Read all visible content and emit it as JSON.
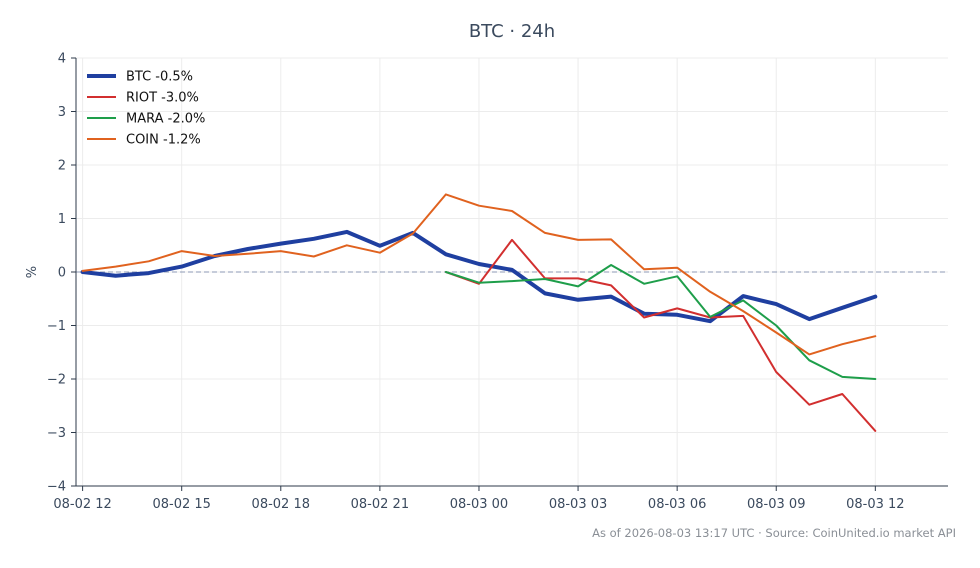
{
  "chart_data": {
    "type": "line",
    "title": "BTC · 24h",
    "ylabel": "%",
    "xlabel": "",
    "ylim": [
      -4,
      4
    ],
    "yticks": [
      -4,
      -3,
      -2,
      -1,
      0,
      1,
      2,
      3,
      4
    ],
    "ytick_labels": [
      "−4",
      "−3",
      "−2",
      "−1",
      "0",
      "1",
      "2",
      "3",
      "4"
    ],
    "xlim_hours": [
      12.8,
      39.2
    ],
    "xticks": [
      {
        "label": "08-02 12",
        "hour": 13
      },
      {
        "label": "08-02 15",
        "hour": 16
      },
      {
        "label": "08-02 18",
        "hour": 19
      },
      {
        "label": "08-02 21",
        "hour": 22
      },
      {
        "label": "08-03 00",
        "hour": 25
      },
      {
        "label": "08-03 03",
        "hour": 28
      },
      {
        "label": "08-03 06",
        "hour": 31
      },
      {
        "label": "08-03 09",
        "hour": 34
      },
      {
        "label": "08-03 12",
        "hour": 37
      }
    ],
    "grid": true,
    "baseline": 0,
    "legend_position": "top-left",
    "series": [
      {
        "name": "BTC -0.5%",
        "color": "#1f3fa0",
        "width": 4,
        "points": [
          [
            13,
            0.0
          ],
          [
            14,
            -0.07
          ],
          [
            15,
            -0.02
          ],
          [
            16,
            0.1
          ],
          [
            17,
            0.3
          ],
          [
            18,
            0.43
          ],
          [
            19,
            0.53
          ],
          [
            20,
            0.62
          ],
          [
            21,
            0.75
          ],
          [
            22,
            0.49
          ],
          [
            23,
            0.73
          ],
          [
            24,
            0.33
          ],
          [
            25,
            0.15
          ],
          [
            26,
            0.04
          ],
          [
            27,
            -0.4
          ],
          [
            28,
            -0.52
          ],
          [
            29,
            -0.46
          ],
          [
            30,
            -0.78
          ],
          [
            31,
            -0.8
          ],
          [
            32,
            -0.92
          ],
          [
            33,
            -0.45
          ],
          [
            34,
            -0.6
          ],
          [
            35,
            -0.88
          ],
          [
            36,
            -0.67
          ],
          [
            37,
            -0.46
          ]
        ]
      },
      {
        "name": "RIOT -3.0%",
        "color": "#d22f2f",
        "width": 2,
        "points": [
          [
            24,
            0.0
          ],
          [
            25,
            -0.22
          ],
          [
            26,
            0.6
          ],
          [
            27,
            -0.12
          ],
          [
            28,
            -0.12
          ],
          [
            29,
            -0.25
          ],
          [
            30,
            -0.85
          ],
          [
            31,
            -0.68
          ],
          [
            32,
            -0.85
          ],
          [
            33,
            -0.82
          ],
          [
            34,
            -1.87
          ],
          [
            35,
            -2.48
          ],
          [
            36,
            -2.28
          ],
          [
            37,
            -2.97
          ]
        ]
      },
      {
        "name": "MARA -2.0%",
        "color": "#1e9e4a",
        "width": 2,
        "points": [
          [
            24,
            0.0
          ],
          [
            25,
            -0.2
          ],
          [
            26,
            -0.17
          ],
          [
            27,
            -0.13
          ],
          [
            28,
            -0.27
          ],
          [
            29,
            0.13
          ],
          [
            30,
            -0.22
          ],
          [
            31,
            -0.08
          ],
          [
            32,
            -0.84
          ],
          [
            33,
            -0.53
          ],
          [
            34,
            -1.0
          ],
          [
            35,
            -1.65
          ],
          [
            36,
            -1.96
          ],
          [
            37,
            -2.0
          ]
        ]
      },
      {
        "name": "COIN -1.2%",
        "color": "#e0621f",
        "width": 2,
        "points": [
          [
            13,
            0.02
          ],
          [
            14,
            0.1
          ],
          [
            15,
            0.2
          ],
          [
            16,
            0.39
          ],
          [
            17,
            0.3
          ],
          [
            18,
            0.34
          ],
          [
            19,
            0.39
          ],
          [
            20,
            0.29
          ],
          [
            21,
            0.5
          ],
          [
            22,
            0.36
          ],
          [
            23,
            0.72
          ],
          [
            24,
            1.45
          ],
          [
            25,
            1.24
          ],
          [
            26,
            1.14
          ],
          [
            27,
            0.73
          ],
          [
            28,
            0.6
          ],
          [
            29,
            0.61
          ],
          [
            30,
            0.05
          ],
          [
            31,
            0.08
          ],
          [
            32,
            -0.37
          ],
          [
            33,
            -0.73
          ],
          [
            34,
            -1.13
          ],
          [
            35,
            -1.54
          ],
          [
            36,
            -1.35
          ],
          [
            37,
            -1.2
          ]
        ]
      }
    ]
  },
  "footer": {
    "text": "As of 2026-08-03 13:17 UTC · Source: CoinUnited.io market API"
  }
}
